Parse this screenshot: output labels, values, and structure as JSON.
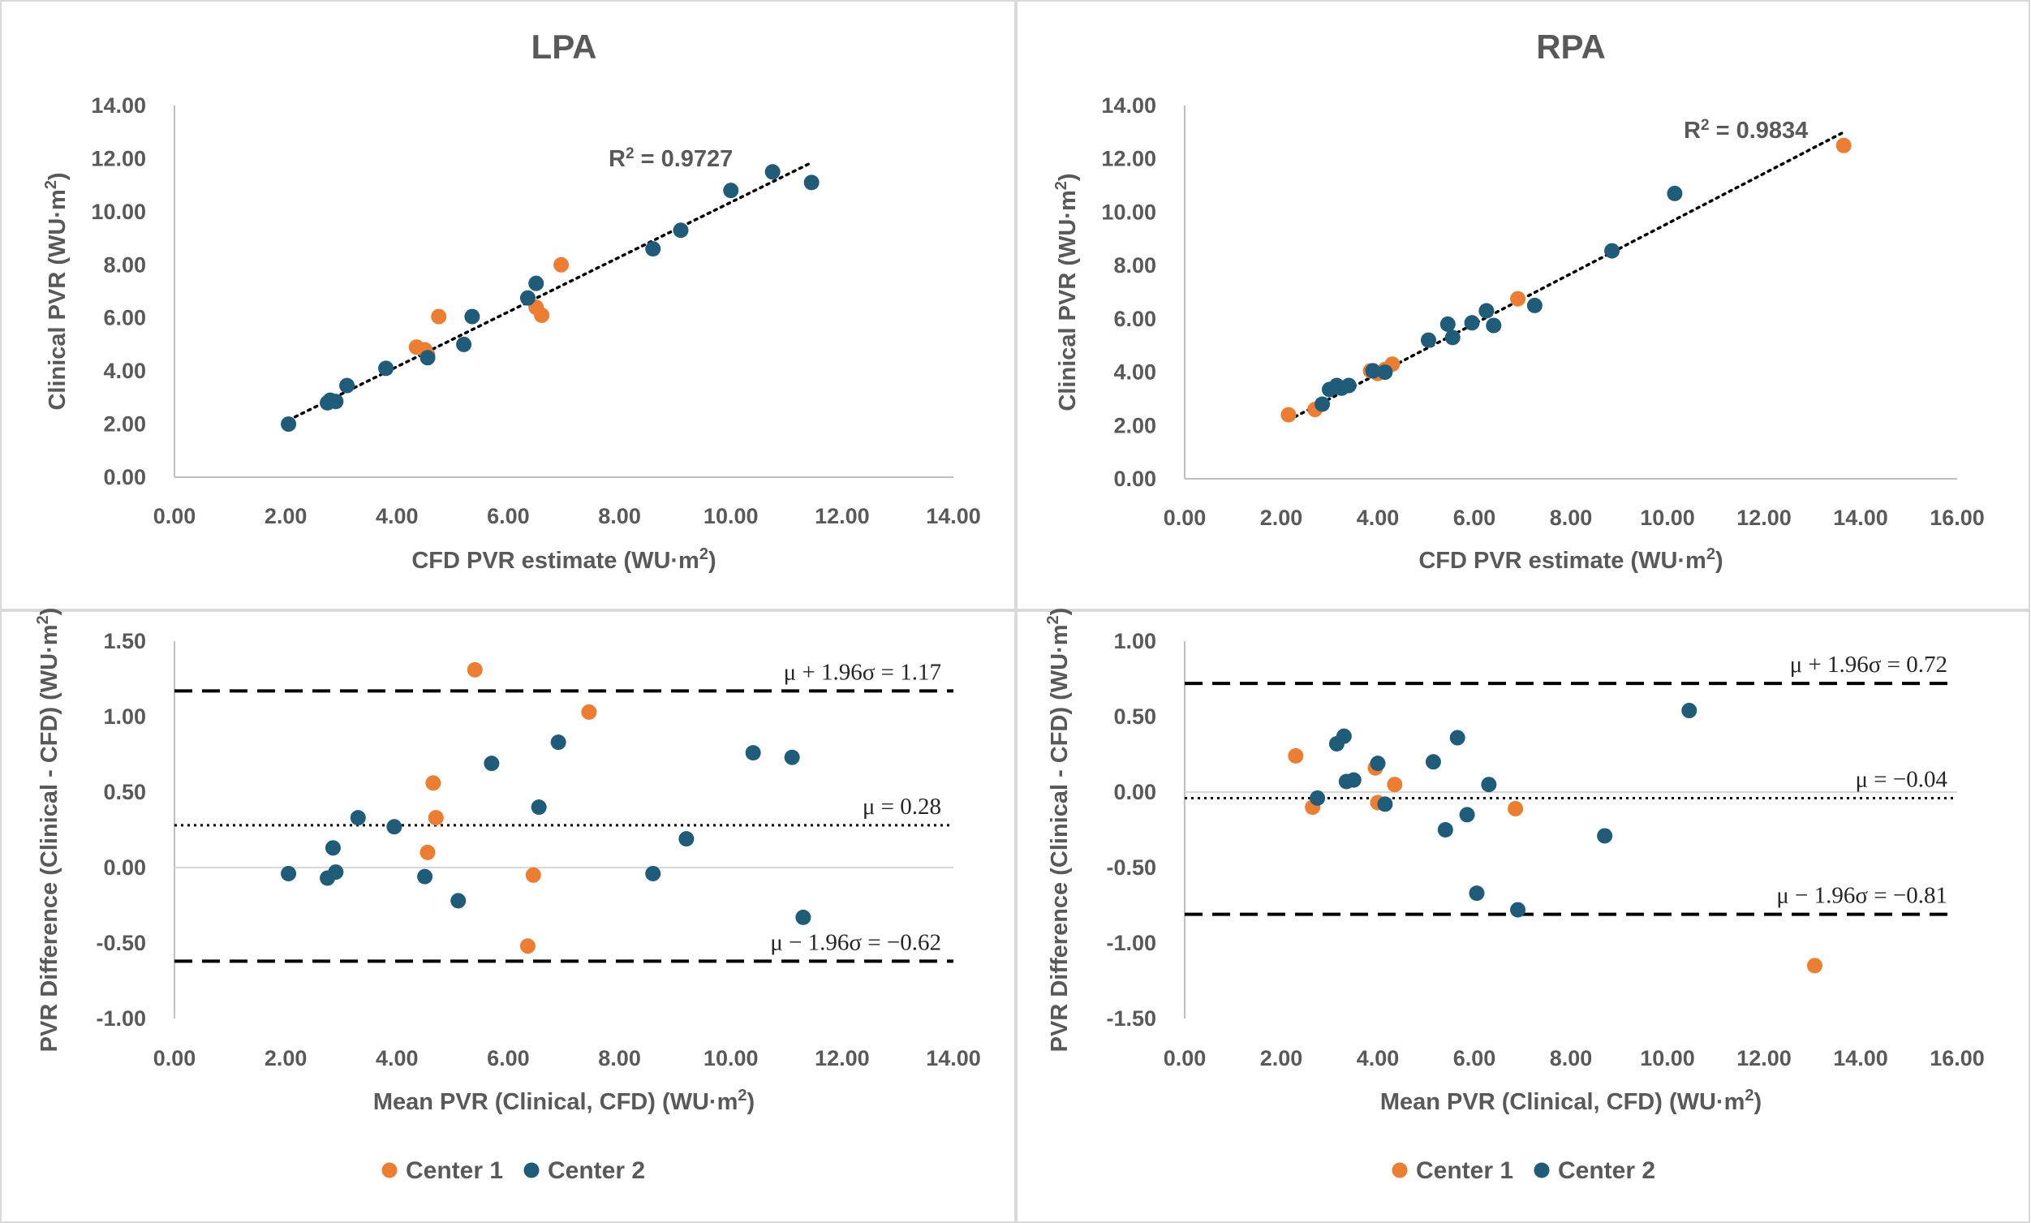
{
  "colors": {
    "center1": "#ED7D31",
    "center2": "#1F5C7A",
    "line": "#000000"
  },
  "legend": [
    {
      "label": "Center 1",
      "color": "#ED7D31"
    },
    {
      "label": "Center 2",
      "color": "#1F5C7A"
    }
  ],
  "chart_data": [
    {
      "type": "scatter",
      "title": "LPA",
      "xlabel": "CFD PVR estimate (WU·m²)",
      "ylabel": "Clinical PVR (WU·m²)",
      "xlim": [
        0,
        14
      ],
      "ylim": [
        0,
        14
      ],
      "xticks": [
        "0.00",
        "2.00",
        "4.00",
        "6.00",
        "8.00",
        "10.00",
        "12.00",
        "14.00"
      ],
      "yticks": [
        "0.00",
        "2.00",
        "4.00",
        "6.00",
        "8.00",
        "10.00",
        "12.00",
        "14.00"
      ],
      "trendline": {
        "style": "dotted",
        "x": [
          2.05,
          11.45
        ],
        "y": [
          2.15,
          11.85
        ],
        "label": "R² = 0.9727"
      },
      "series": [
        {
          "name": "Center 1",
          "color": "#ED7D31",
          "points": [
            [
              4.35,
              4.9
            ],
            [
              4.5,
              4.8
            ],
            [
              4.55,
              4.6
            ],
            [
              4.75,
              6.05
            ],
            [
              6.5,
              6.4
            ],
            [
              6.6,
              6.1
            ],
            [
              6.95,
              8.0
            ]
          ]
        },
        {
          "name": "Center 2",
          "color": "#1F5C7A",
          "points": [
            [
              2.05,
              2.0
            ],
            [
              2.75,
              2.8
            ],
            [
              2.8,
              2.9
            ],
            [
              2.9,
              2.85
            ],
            [
              3.1,
              3.45
            ],
            [
              3.8,
              4.1
            ],
            [
              4.55,
              4.5
            ],
            [
              5.2,
              5.0
            ],
            [
              5.35,
              6.05
            ],
            [
              6.35,
              6.75
            ],
            [
              6.5,
              7.3
            ],
            [
              8.6,
              8.6
            ],
            [
              9.1,
              9.3
            ],
            [
              10.0,
              10.8
            ],
            [
              10.75,
              11.5
            ],
            [
              11.45,
              11.1
            ]
          ]
        }
      ]
    },
    {
      "type": "scatter",
      "title": "RPA",
      "xlabel": "CFD PVR estimate (WU·m²)",
      "ylabel": "Clinical PVR (WU·m²)",
      "xlim": [
        0,
        16
      ],
      "ylim": [
        0,
        14
      ],
      "xticks": [
        "0.00",
        "2.00",
        "4.00",
        "6.00",
        "8.00",
        "10.00",
        "12.00",
        "14.00",
        "16.00"
      ],
      "yticks": [
        "0.00",
        "2.00",
        "4.00",
        "6.00",
        "8.00",
        "10.00",
        "12.00",
        "14.00"
      ],
      "trendline": {
        "style": "dotted",
        "x": [
          2.15,
          13.65
        ],
        "y": [
          2.2,
          13.0
        ],
        "label": "R² = 0.9834"
      },
      "series": [
        {
          "name": "Center 1",
          "color": "#ED7D31",
          "points": [
            [
              2.15,
              2.4
            ],
            [
              2.7,
              2.6
            ],
            [
              3.85,
              4.05
            ],
            [
              4.0,
              3.95
            ],
            [
              4.15,
              4.1
            ],
            [
              4.3,
              4.3
            ],
            [
              6.9,
              6.75
            ],
            [
              13.65,
              12.5
            ]
          ]
        },
        {
          "name": "Center 2",
          "color": "#1F5C7A",
          "points": [
            [
              2.85,
              2.8
            ],
            [
              3.0,
              3.35
            ],
            [
              3.15,
              3.5
            ],
            [
              3.25,
              3.4
            ],
            [
              3.4,
              3.5
            ],
            [
              3.9,
              4.05
            ],
            [
              4.15,
              4.0
            ],
            [
              5.05,
              5.2
            ],
            [
              5.45,
              5.8
            ],
            [
              5.55,
              5.3
            ],
            [
              5.95,
              5.85
            ],
            [
              6.25,
              6.3
            ],
            [
              6.4,
              5.75
            ],
            [
              7.25,
              6.5
            ],
            [
              8.85,
              8.55
            ],
            [
              10.15,
              10.7
            ]
          ]
        }
      ]
    },
    {
      "type": "scatter",
      "title": "",
      "xlabel": "Mean PVR (Clinical, CFD) (WU·m²)",
      "ylabel": "PVR Difference (Clinical - CFD) (WU·m²)",
      "xlim": [
        0,
        14
      ],
      "ylim": [
        -1,
        1.5
      ],
      "xticks": [
        "0.00",
        "2.00",
        "4.00",
        "6.00",
        "8.00",
        "10.00",
        "12.00",
        "14.00"
      ],
      "yticks": [
        "-1.00",
        "-0.50",
        "0.00",
        "0.50",
        "1.00",
        "1.50"
      ],
      "reference_lines": [
        {
          "y": 1.17,
          "style": "dashed",
          "label": "μ + 1.96σ = 1.17"
        },
        {
          "y": 0.28,
          "style": "dotted",
          "label": "μ = 0.28"
        },
        {
          "y": -0.62,
          "style": "dashed",
          "label": "μ − 1.96σ = −0.62"
        }
      ],
      "series": [
        {
          "name": "Center 1",
          "color": "#ED7D31",
          "points": [
            [
              4.55,
              0.1
            ],
            [
              4.65,
              0.56
            ],
            [
              4.7,
              0.33
            ],
            [
              5.4,
              1.31
            ],
            [
              6.35,
              -0.52
            ],
            [
              6.45,
              -0.05
            ],
            [
              7.45,
              1.03
            ]
          ]
        },
        {
          "name": "Center 2",
          "color": "#1F5C7A",
          "points": [
            [
              2.05,
              -0.04
            ],
            [
              2.75,
              -0.07
            ],
            [
              2.85,
              0.13
            ],
            [
              2.9,
              -0.03
            ],
            [
              3.3,
              0.33
            ],
            [
              3.95,
              0.27
            ],
            [
              4.5,
              -0.06
            ],
            [
              5.1,
              -0.22
            ],
            [
              5.7,
              0.69
            ],
            [
              6.55,
              0.4
            ],
            [
              6.9,
              0.83
            ],
            [
              8.6,
              -0.04
            ],
            [
              9.2,
              0.19
            ],
            [
              10.4,
              0.76
            ],
            [
              11.1,
              0.73
            ],
            [
              11.3,
              -0.33
            ]
          ]
        }
      ]
    },
    {
      "type": "scatter",
      "title": "",
      "xlabel": "Mean PVR (Clinical, CFD) (WU·m²)",
      "ylabel": "PVR Difference (Clinical - CFD) (WU·m²)",
      "xlim": [
        0,
        16
      ],
      "ylim": [
        -1.5,
        1
      ],
      "xticks": [
        "0.00",
        "2.00",
        "4.00",
        "6.00",
        "8.00",
        "10.00",
        "12.00",
        "14.00",
        "16.00"
      ],
      "yticks": [
        "-1.50",
        "-1.00",
        "-0.50",
        "0.00",
        "0.50",
        "1.00"
      ],
      "reference_lines": [
        {
          "y": 0.72,
          "style": "dashed",
          "label": "μ + 1.96σ = 0.72"
        },
        {
          "y": -0.04,
          "style": "dotted",
          "label": "μ = −0.04"
        },
        {
          "y": -0.81,
          "style": "dashed",
          "label": "μ − 1.96σ = −0.81"
        }
      ],
      "series": [
        {
          "name": "Center 1",
          "color": "#ED7D31",
          "points": [
            [
              2.3,
              0.24
            ],
            [
              2.65,
              -0.1
            ],
            [
              3.95,
              0.16
            ],
            [
              4.0,
              -0.07
            ],
            [
              4.35,
              0.05
            ],
            [
              6.85,
              -0.11
            ],
            [
              13.05,
              -1.15
            ]
          ]
        },
        {
          "name": "Center 2",
          "color": "#1F5C7A",
          "points": [
            [
              2.75,
              -0.04
            ],
            [
              3.15,
              0.32
            ],
            [
              3.3,
              0.37
            ],
            [
              3.35,
              0.07
            ],
            [
              3.5,
              0.08
            ],
            [
              4.0,
              0.19
            ],
            [
              4.15,
              -0.08
            ],
            [
              5.15,
              0.2
            ],
            [
              5.4,
              -0.25
            ],
            [
              5.65,
              0.36
            ],
            [
              5.85,
              -0.15
            ],
            [
              6.05,
              -0.67
            ],
            [
              6.3,
              0.05
            ],
            [
              6.9,
              -0.78
            ],
            [
              8.7,
              -0.29
            ],
            [
              10.45,
              0.54
            ]
          ]
        }
      ]
    }
  ]
}
